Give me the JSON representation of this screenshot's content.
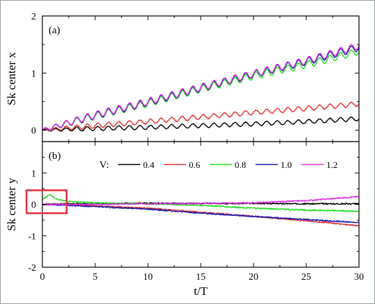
{
  "chart_data": [
    {
      "type": "line",
      "panel_label": "(a)",
      "ylabel": "Sk center x",
      "xlabel": "",
      "xlim": [
        0,
        30
      ],
      "ylim": [
        -0.2,
        2
      ],
      "xticks": [
        0,
        5,
        10,
        15,
        20,
        25,
        30
      ],
      "yticks": [
        0,
        1,
        2
      ],
      "grid": false,
      "series": [
        {
          "name": "0.4",
          "color": "#000000",
          "x": [
            0,
            5,
            10,
            15,
            20,
            25,
            30
          ],
          "y": [
            0.0,
            0.03,
            0.05,
            0.08,
            0.11,
            0.15,
            0.2
          ],
          "osc_amp": 0.035,
          "osc_period": 1
        },
        {
          "name": "0.6",
          "color": "#e03030",
          "x": [
            0,
            5,
            10,
            15,
            20,
            25,
            30
          ],
          "y": [
            0.0,
            0.08,
            0.15,
            0.23,
            0.31,
            0.38,
            0.46
          ],
          "osc_amp": 0.04,
          "osc_period": 1
        },
        {
          "name": "0.8",
          "color": "#22dd22",
          "x": [
            0,
            5,
            10,
            15,
            20,
            25,
            30
          ],
          "y": [
            0.0,
            0.25,
            0.47,
            0.72,
            0.95,
            1.15,
            1.38
          ],
          "osc_amp": 0.06,
          "osc_period": 1
        },
        {
          "name": "1.0",
          "color": "#1a1aaa",
          "x": [
            0,
            5,
            10,
            15,
            20,
            25,
            30
          ],
          "y": [
            0.0,
            0.26,
            0.49,
            0.74,
            0.98,
            1.2,
            1.45
          ],
          "osc_amp": 0.06,
          "osc_period": 1
        },
        {
          "name": "1.2",
          "color": "#dd33dd",
          "x": [
            0,
            5,
            10,
            15,
            20,
            25,
            30
          ],
          "y": [
            0.0,
            0.27,
            0.5,
            0.75,
            0.99,
            1.22,
            1.48
          ],
          "osc_amp": 0.06,
          "osc_period": 1
        }
      ]
    },
    {
      "type": "line",
      "panel_label": "(b)",
      "ylabel": "Sk center y",
      "xlabel": "t/T",
      "xlim": [
        0,
        30
      ],
      "ylim": [
        -2,
        2
      ],
      "xticks": [
        0,
        5,
        10,
        15,
        20,
        25,
        30
      ],
      "xticklabels": [
        "0",
        "5",
        "10",
        "15",
        "20",
        "25",
        "30"
      ],
      "yticks": [
        -2,
        -1,
        0,
        1
      ],
      "legend_title": "V:",
      "legend_placement": "top",
      "grid": false,
      "highlight_box": {
        "x": [
          -1.5,
          2.3
        ],
        "y": [
          -0.28,
          0.45
        ],
        "color": "#e03040"
      },
      "series": [
        {
          "name": "0.4",
          "color": "#000000",
          "x": [
            0,
            2,
            5,
            10,
            15,
            20,
            25,
            30
          ],
          "y": [
            0.0,
            0.02,
            0.02,
            0.04,
            0.03,
            0.03,
            0.02,
            0.02
          ]
        },
        {
          "name": "0.6",
          "color": "#e03030",
          "x": [
            0,
            2,
            5,
            10,
            15,
            20,
            25,
            30
          ],
          "y": [
            0.0,
            0.0,
            -0.05,
            -0.12,
            -0.25,
            -0.38,
            -0.52,
            -0.68
          ]
        },
        {
          "name": "0.8",
          "color": "#22dd22",
          "x": [
            0,
            0.7,
            1.5,
            3,
            5,
            10,
            15,
            20,
            25,
            30
          ],
          "y": [
            0.15,
            0.32,
            0.15,
            0.08,
            0.05,
            0.02,
            -0.03,
            -0.12,
            -0.18,
            -0.22
          ]
        },
        {
          "name": "1.0",
          "color": "#1a1aaa",
          "x": [
            0,
            2,
            5,
            10,
            15,
            20,
            25,
            30
          ],
          "y": [
            0.0,
            -0.02,
            -0.07,
            -0.15,
            -0.28,
            -0.38,
            -0.48,
            -0.58
          ]
        },
        {
          "name": "1.2",
          "color": "#dd33dd",
          "x": [
            0,
            2,
            5,
            10,
            15,
            20,
            25,
            30
          ],
          "y": [
            0.0,
            0.0,
            0.0,
            0.02,
            0.03,
            0.05,
            0.12,
            0.25
          ]
        }
      ]
    }
  ],
  "frame_color": "#9aa0a6"
}
